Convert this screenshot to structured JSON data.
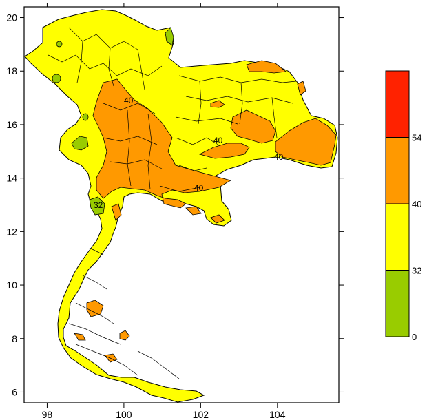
{
  "map": {
    "x_ticks": [
      "98",
      "100",
      "102",
      "104"
    ],
    "y_ticks": [
      "6",
      "8",
      "10",
      "12",
      "14",
      "16",
      "18",
      "20"
    ],
    "x_range": [
      97.4,
      105.6
    ],
    "y_range": [
      5.6,
      20.4
    ],
    "contour_labels": [
      "40",
      "40",
      "40",
      "40",
      "32"
    ]
  },
  "colorbar": {
    "bins": [
      {
        "from": 0,
        "to": 32,
        "color": "#99cc00"
      },
      {
        "from": 32,
        "to": 40,
        "color": "#ffff00"
      },
      {
        "from": 40,
        "to": 54,
        "color": "#ff9900"
      },
      {
        "from": 54,
        "to": 60,
        "color": "#ff2200"
      }
    ],
    "labels": [
      "0",
      "32",
      "40",
      "54"
    ]
  },
  "colors": {
    "land_base": "#ffff00",
    "hot_zone": "#ff9900",
    "cool_zone": "#99cc00",
    "border": "#000000"
  }
}
